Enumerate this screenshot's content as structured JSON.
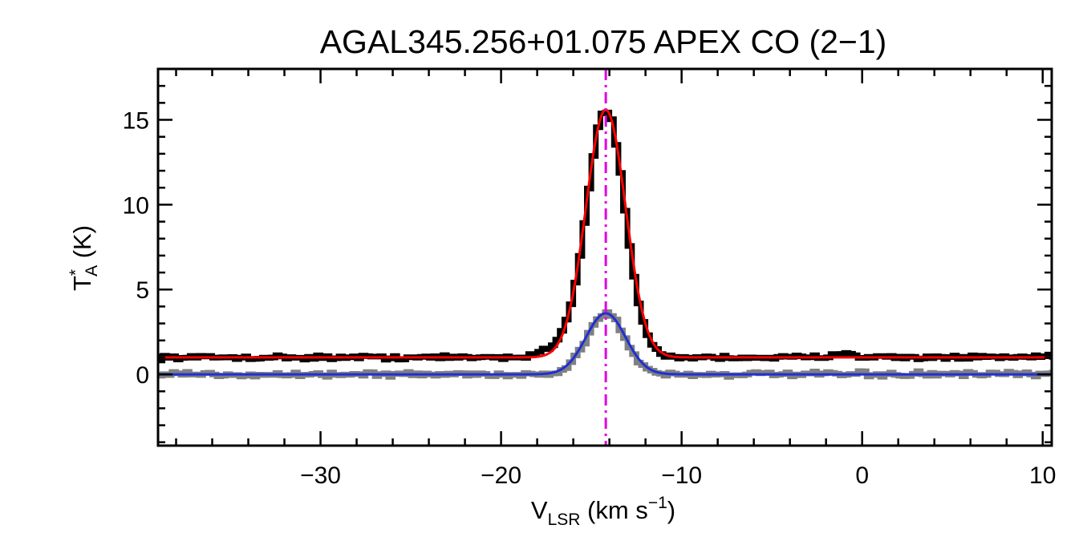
{
  "chart_data": {
    "type": "line",
    "title": "AGAL345.256+01.075  APEX CO (2−1)",
    "xlabel": {
      "main": "V",
      "subscript": "LSR",
      "unit_prefix": " (km s",
      "superscript": "−1",
      "unit_suffix": ")"
    },
    "ylabel": {
      "main": "T",
      "superscript": "*",
      "subscript": "A",
      "unit": " (K)"
    },
    "xlim": [
      -39,
      10.5
    ],
    "ylim": [
      -4.2,
      18
    ],
    "xticks": [
      -30,
      -20,
      -10,
      0,
      10
    ],
    "xtick_labels": [
      "−30",
      "−20",
      "−10",
      "0",
      "10"
    ],
    "yticks": [
      0,
      5,
      10,
      15
    ],
    "ytick_labels": [
      "0",
      "5",
      "10",
      "15"
    ],
    "x_minor_step": 2,
    "y_minor_step": 1,
    "grid": false,
    "legend": "none",
    "marker_line": {
      "x": -14.2,
      "color": "#e000e0",
      "style": "dash-dot"
    },
    "series": [
      {
        "kind": "histogram",
        "color": "#000000",
        "channel_width": 0.25,
        "baseline": 1.0,
        "noise": 0.11,
        "components": [
          {
            "amp": 14.6,
            "center": -14.2,
            "sigma": 1.05
          },
          {
            "amp": 0.55,
            "center": -16.8,
            "sigma": 0.9
          },
          {
            "amp": 0.3,
            "center": -1.0,
            "sigma": 0.6
          }
        ]
      },
      {
        "kind": "histogram",
        "color": "#808080",
        "channel_width": 0.25,
        "baseline": 0.0,
        "noise": 0.13,
        "components": [
          {
            "amp": 3.6,
            "center": -14.2,
            "sigma": 1.05
          }
        ]
      },
      {
        "kind": "gaussian-fit",
        "color": "#ff0000",
        "baseline": 1.0,
        "components": [
          {
            "amp": 14.6,
            "center": -14.2,
            "sigma": 1.1
          }
        ]
      },
      {
        "kind": "gaussian-fit",
        "color": "#1f2fd6",
        "baseline": 0.0,
        "components": [
          {
            "amp": 3.6,
            "center": -14.2,
            "sigma": 1.1
          }
        ]
      }
    ]
  }
}
